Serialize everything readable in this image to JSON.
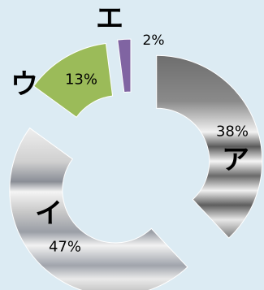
{
  "colors": {
    "background": "#dcebf3",
    "slice_a": "#8a8a8a",
    "slice_i": "#c8c8c8",
    "slice_u": "#9bbb59",
    "slice_e": "#8064a2"
  },
  "chart_data": {
    "type": "pie",
    "style": "exploded-doughnut",
    "categories": [
      "ア",
      "イ",
      "ウ",
      "エ"
    ],
    "values": [
      38,
      47,
      13,
      2
    ],
    "value_labels": [
      "38%",
      "47%",
      "13%",
      "2%"
    ],
    "colors": [
      "#8a8a8a",
      "#c8c8c8",
      "#9bbb59",
      "#8064a2"
    ],
    "title": "",
    "legend": "none"
  }
}
